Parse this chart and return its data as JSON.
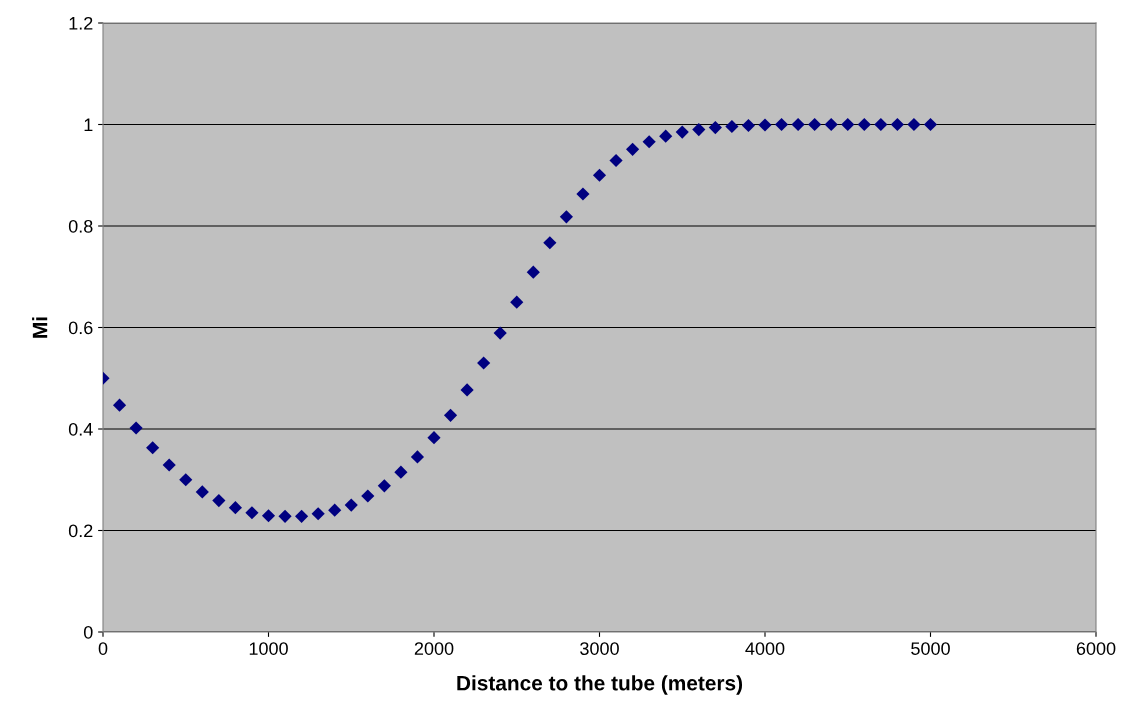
{
  "chart_data": {
    "type": "scatter",
    "xlabel": "Distance to the tube (meters)",
    "ylabel": "Mi",
    "x": [
      0,
      100,
      200,
      300,
      400,
      500,
      600,
      700,
      800,
      900,
      1000,
      1100,
      1200,
      1300,
      1400,
      1500,
      1600,
      1700,
      1800,
      1900,
      2000,
      2100,
      2200,
      2300,
      2400,
      2500,
      2600,
      2700,
      2800,
      2900,
      3000,
      3100,
      3200,
      3300,
      3400,
      3500,
      3600,
      3700,
      3800,
      3900,
      4000,
      4100,
      4200,
      4300,
      4400,
      4500,
      4600,
      4700,
      4800,
      4900,
      5000
    ],
    "values": [
      0.5,
      0.447,
      0.402,
      0.363,
      0.329,
      0.3,
      0.276,
      0.259,
      0.245,
      0.235,
      0.229,
      0.228,
      0.228,
      0.233,
      0.24,
      0.25,
      0.268,
      0.288,
      0.315,
      0.345,
      0.383,
      0.427,
      0.477,
      0.53,
      0.589,
      0.65,
      0.709,
      0.767,
      0.818,
      0.863,
      0.9,
      0.929,
      0.951,
      0.966,
      0.977,
      0.985,
      0.99,
      0.994,
      0.996,
      0.998,
      0.999,
      1.0,
      1.0,
      1.0,
      1.0,
      1.0,
      1.0,
      1.0,
      1.0,
      1.0,
      1.0
    ],
    "color": "#000080",
    "marker": "diamond",
    "xlim": [
      0,
      6000
    ],
    "xticks": [
      0,
      1000,
      2000,
      3000,
      4000,
      5000,
      6000
    ],
    "ylim": [
      0,
      1.2
    ],
    "yticks": [
      0,
      0.2,
      0.4,
      0.6,
      0.8,
      1,
      1.2
    ],
    "grid": "y",
    "legend": false
  }
}
